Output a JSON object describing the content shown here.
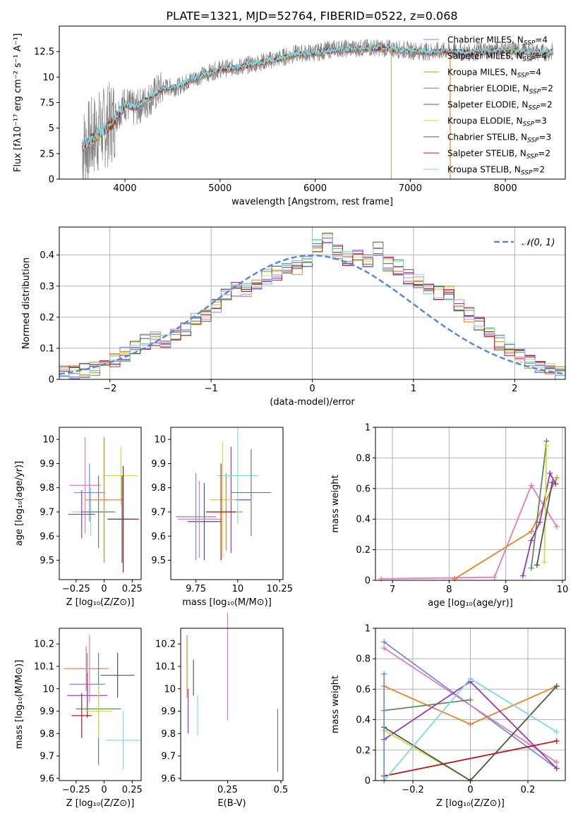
{
  "figure_title": "PLATE=1321, MJD=52764, FIBERID=0522, z=0.068",
  "chart_data": [
    {
      "id": "spectrum",
      "type": "line",
      "title": "PLATE=1321, MJD=52764, FIBERID=0522, z=0.068",
      "xlabel": "wavelength [Angstrom, rest frame]",
      "ylabel": "Flux [fλ10⁻¹⁷ erg cm⁻² s⁻¹ A⁻¹]",
      "xlim": [
        3310,
        8630
      ],
      "ylim": [
        0,
        15
      ],
      "xticks": [
        4000,
        5000,
        6000,
        7000,
        8000
      ],
      "yticks": [
        0.0,
        2.5,
        5.0,
        7.5,
        10.0,
        12.5
      ],
      "grid": false,
      "legend_position": "top-right",
      "data_wavelength": [
        3550,
        3700,
        3850,
        4000,
        4100,
        4250,
        4400,
        4550,
        4700,
        4850,
        5000,
        5200,
        5400,
        5600,
        5800,
        6000,
        6200,
        6400,
        6600,
        6800,
        7000,
        7200,
        7400,
        7600,
        7800,
        8000,
        8200,
        8400,
        8500
      ],
      "data_flux": [
        3.0,
        4.5,
        5.5,
        7.5,
        6.8,
        7.8,
        9.0,
        9.0,
        9.8,
        10.3,
        10.8,
        11.0,
        11.4,
        11.8,
        12.3,
        12.4,
        12.8,
        12.8,
        12.9,
        12.8,
        12.6,
        12.5,
        12.6,
        12.4,
        12.6,
        12.7,
        12.5,
        12.4,
        12.5
      ],
      "model_flux": [
        3.1,
        4.3,
        5.2,
        7.3,
        6.9,
        7.9,
        8.8,
        9.0,
        9.7,
        10.2,
        10.7,
        10.9,
        11.3,
        11.7,
        12.2,
        12.3,
        12.6,
        12.7,
        12.8,
        12.7,
        12.5,
        12.4,
        12.5,
        12.4,
        12.5,
        12.6,
        12.4,
        12.3,
        12.4
      ],
      "dip_lines": [
        6800,
        7420
      ]
    },
    {
      "id": "residuals",
      "type": "bar",
      "xlabel": "(data-model)/error",
      "ylabel": "Normed distribution",
      "xlim": [
        -2.5,
        2.5
      ],
      "ylim": [
        0,
        0.49
      ],
      "xticks": [
        -2,
        -1,
        0,
        1,
        2
      ],
      "yticks": [
        0.0,
        0.1,
        0.2,
        0.3,
        0.4
      ],
      "grid": true,
      "legend_position": "top-right",
      "legend_label": "𝒩(0, 1)",
      "bin_width": 0.1,
      "bin_start": -2.5,
      "histogram": [
        0.018,
        0.022,
        0.028,
        0.034,
        0.04,
        0.06,
        0.08,
        0.1,
        0.12,
        0.13,
        0.12,
        0.14,
        0.16,
        0.19,
        0.21,
        0.24,
        0.27,
        0.29,
        0.29,
        0.31,
        0.33,
        0.34,
        0.35,
        0.36,
        0.38,
        0.43,
        0.45,
        0.41,
        0.39,
        0.4,
        0.38,
        0.42,
        0.37,
        0.36,
        0.33,
        0.32,
        0.3,
        0.28,
        0.28,
        0.24,
        0.21,
        0.18,
        0.16,
        0.12,
        0.1,
        0.075,
        0.06,
        0.045,
        0.03,
        0.022
      ]
    },
    {
      "id": "z_vs_age",
      "type": "scatter",
      "xlabel": "Z [log₁₀(Z/Z⊙)]",
      "ylabel": "age  [log₁₀(age/yr)]",
      "xlim": [
        -0.4,
        0.33
      ],
      "ylim": [
        9.42,
        10.05
      ],
      "xticks": [
        -0.25,
        0.0,
        0.25
      ],
      "yticks": [
        9.5,
        9.6,
        9.7,
        9.8,
        9.9,
        10.0
      ],
      "points": [
        {
          "x": -0.12,
          "y": 9.7,
          "xerr": 0.16,
          "yerr": 0.1
        },
        {
          "x": -0.17,
          "y": 9.81,
          "xerr": 0.14,
          "yerr": 0.2
        },
        {
          "x": -0.05,
          "y": 9.7,
          "xerr": 0.15,
          "yerr": 0.15
        },
        {
          "x": 0.15,
          "y": 9.85,
          "xerr": 0.15,
          "yerr": 0.12
        },
        {
          "x": 0.17,
          "y": 9.67,
          "xerr": 0.14,
          "yerr": 0.22
        },
        {
          "x": -0.13,
          "y": 9.78,
          "xerr": 0.14,
          "yerr": 0.12
        },
        {
          "x": 0.0,
          "y": 9.75,
          "xerr": 0.17,
          "yerr": 0.26
        },
        {
          "x": -0.2,
          "y": 9.69,
          "xerr": 0.12,
          "yerr": 0.1
        },
        {
          "x": 0.16,
          "y": 9.67,
          "xerr": 0.12,
          "yerr": 0.18
        }
      ]
    },
    {
      "id": "mass_vs_age",
      "type": "scatter",
      "xlabel": "mass [log₁₀(M/M⊙)]",
      "ylabel": "",
      "xlim": [
        9.6,
        10.27
      ],
      "ylim": [
        9.42,
        10.05
      ],
      "xticks": [
        9.75,
        10.0,
        10.25
      ],
      "yticks": [
        9.5,
        9.6,
        9.7,
        9.8,
        9.9,
        10.0
      ],
      "points": [
        {
          "x": 9.93,
          "y": 9.7,
          "xerr": 0.1,
          "yerr": 0.16
        },
        {
          "x": 9.96,
          "y": 9.75,
          "xerr": 0.12,
          "yerr": 0.22
        },
        {
          "x": 9.8,
          "y": 9.66,
          "xerr": 0.1,
          "yerr": 0.16
        },
        {
          "x": 10.0,
          "y": 9.85,
          "xerr": 0.12,
          "yerr": 0.2
        },
        {
          "x": 9.77,
          "y": 9.67,
          "xerr": 0.13,
          "yerr": 0.16
        },
        {
          "x": 10.08,
          "y": 9.78,
          "xerr": 0.12,
          "yerr": 0.18
        },
        {
          "x": 9.91,
          "y": 9.75,
          "xerr": 0.08,
          "yerr": 0.24
        },
        {
          "x": 9.9,
          "y": 9.7,
          "xerr": 0.09,
          "yerr": 0.2
        },
        {
          "x": 9.75,
          "y": 9.68,
          "xerr": 0.12,
          "yerr": 0.18
        }
      ]
    },
    {
      "id": "weight_vs_age",
      "type": "line",
      "xlabel": "age  [log₁₀(age/yr)]",
      "ylabel": "mass weight",
      "xlim": [
        6.7,
        10.05
      ],
      "ylim": [
        0,
        1.0
      ],
      "xticks": [
        7,
        8,
        9,
        10
      ],
      "yticks": [
        0.0,
        0.2,
        0.4,
        0.6,
        0.8,
        1.0
      ],
      "grid": true,
      "series": [
        {
          "x": [
            6.8,
            8.8,
            9.45,
            9.9
          ],
          "y": [
            0.01,
            0.02,
            0.62,
            0.35
          ]
        },
        {
          "x": [
            8.1,
            9.45,
            9.9
          ],
          "y": [
            0.01,
            0.32,
            0.67
          ]
        },
        {
          "x": [
            9.45,
            9.72
          ],
          "y": [
            0.08,
            0.91
          ]
        },
        {
          "x": [
            9.3,
            9.45,
            9.6,
            9.78,
            9.88
          ],
          "y": [
            0.03,
            0.26,
            0.38,
            0.7,
            0.63
          ]
        },
        {
          "x": [
            9.68,
            9.72
          ],
          "y": [
            0.12,
            0.88
          ]
        },
        {
          "x": [
            9.55,
            9.82
          ],
          "y": [
            0.1,
            0.64
          ]
        }
      ]
    },
    {
      "id": "z_vs_mass",
      "type": "scatter",
      "xlabel": "Z [log₁₀(Z/Z⊙)]",
      "ylabel": "mass [log₁₀(M/M⊙)]",
      "xlim": [
        -0.4,
        0.33
      ],
      "ylim": [
        9.59,
        10.27
      ],
      "xticks": [
        -0.25,
        0.0,
        0.25
      ],
      "yticks": [
        9.6,
        9.7,
        9.8,
        9.9,
        10.0,
        10.1,
        10.2
      ],
      "points": [
        {
          "x": -0.15,
          "y": 10.02,
          "xerr": 0.16,
          "yerr": 0.14
        },
        {
          "x": -0.16,
          "y": 10.09,
          "xerr": 0.2,
          "yerr": 0.1
        },
        {
          "x": -0.15,
          "y": 9.97,
          "xerr": 0.18,
          "yerr": 0.1
        },
        {
          "x": 0.12,
          "y": 10.06,
          "xerr": 0.15,
          "yerr": 0.1
        },
        {
          "x": 0.17,
          "y": 9.77,
          "xerr": 0.15,
          "yerr": 0.13
        },
        {
          "x": -0.13,
          "y": 10.09,
          "xerr": 0.12,
          "yerr": 0.15
        },
        {
          "x": -0.05,
          "y": 9.91,
          "xerr": 0.2,
          "yerr": 0.25
        },
        {
          "x": -0.05,
          "y": 9.9,
          "xerr": 0.12,
          "yerr": 0.12
        },
        {
          "x": -0.2,
          "y": 9.88,
          "xerr": 0.09,
          "yerr": 0.1
        }
      ]
    },
    {
      "id": "ebv_vs_mass",
      "type": "scatter",
      "xlabel": "E(B-V)",
      "ylabel": "",
      "xlim": [
        0.03,
        0.51
      ],
      "ylim": [
        9.59,
        10.27
      ],
      "xticks": [
        0.25,
        0.5
      ],
      "yticks": [
        9.6,
        9.7,
        9.8,
        9.9,
        10.0,
        10.1,
        10.2
      ],
      "points": [
        {
          "x": 0.06,
          "y": 10.1,
          "yerr": 0.14
        },
        {
          "x": 0.065,
          "y": 9.9,
          "yerr": 0.1
        },
        {
          "x": 0.09,
          "y": 10.05,
          "yerr": 0.08
        },
        {
          "x": 0.11,
          "y": 9.88,
          "yerr": 0.09
        },
        {
          "x": 0.25,
          "y": 10.1,
          "yerr": 0.24
        },
        {
          "x": 0.485,
          "y": 9.77,
          "yerr": 0.14
        }
      ]
    },
    {
      "id": "weight_vs_z",
      "type": "line",
      "xlabel": "Z [log₁₀(Z/Z⊙)]",
      "ylabel": "mass weight",
      "xlim": [
        -0.33,
        0.33
      ],
      "ylim": [
        0,
        1.0
      ],
      "xticks": [
        -0.2,
        0.0,
        0.2
      ],
      "yticks": [
        0.0,
        0.2,
        0.4,
        0.6,
        0.8,
        1.0
      ],
      "grid": true,
      "series": [
        {
          "x": [
            -0.3,
            0.3
          ],
          "y": [
            0.91,
            0.08
          ]
        },
        {
          "x": [
            -0.3,
            0.3
          ],
          "y": [
            0.87,
            0.12
          ]
        },
        {
          "x": [
            -0.3,
            0.0,
            0.3
          ],
          "y": [
            0.62,
            0.37,
            0.62
          ]
        },
        {
          "x": [
            -0.3,
            0.0
          ],
          "y": [
            0.46,
            0.53
          ]
        },
        {
          "x": [
            -0.3,
            0.0,
            0.3
          ],
          "y": [
            0.27,
            0.65,
            0.08
          ]
        },
        {
          "x": [
            -0.3,
            0.0,
            0.3
          ],
          "y": [
            0.33,
            0.0,
            0.62
          ]
        },
        {
          "x": [
            -0.3,
            0.0,
            0.3
          ],
          "y": [
            0.35,
            0.0,
            0.62
          ]
        },
        {
          "x": [
            -0.3,
            0.3
          ],
          "y": [
            0.03,
            0.26
          ]
        },
        {
          "x": [
            -0.3,
            0.0,
            0.3
          ],
          "y": [
            0.0,
            0.67,
            0.32
          ]
        },
        {
          "x": [
            -0.3,
            -0.3
          ],
          "y": [
            0.0,
            0.7
          ]
        }
      ]
    }
  ],
  "legend": [
    {
      "label": "Chabrier MILES, N",
      "sub": "SSP",
      "suffix": "=4",
      "color": "#6f8fd6"
    },
    {
      "label": "Salpeter MILES, N",
      "sub": "SSP",
      "suffix": "=4",
      "color": "#e07fb5"
    },
    {
      "label": "Kroupa MILES, N",
      "sub": "SSP",
      "suffix": "=4",
      "color": "#e5842c"
    },
    {
      "label": "Chabrier ELODIE, N",
      "sub": "SSP",
      "suffix": "=2",
      "color": "#5e8c5e"
    },
    {
      "label": "Salpeter ELODIE, N",
      "sub": "SSP",
      "suffix": "=2",
      "color": "#9a36b8"
    },
    {
      "label": "Kroupa ELODIE, N",
      "sub": "SSP",
      "suffix": "=3",
      "color": "#c8e04a"
    },
    {
      "label": "Chabrier STELIB, N",
      "sub": "SSP",
      "suffix": "=3",
      "color": "#555555"
    },
    {
      "label": "Salpeter STELIB, N",
      "sub": "SSP",
      "suffix": "=2",
      "color": "#b01c1c"
    },
    {
      "label": "Kroupa STELIB, N",
      "sub": "SSP",
      "suffix": "=2",
      "color": "#7fd8e0"
    }
  ],
  "colors": [
    "#6f8fd6",
    "#e07fb5",
    "#e5842c",
    "#5e8c5e",
    "#9a36b8",
    "#c8e04a",
    "#555555",
    "#b01c1c",
    "#7fd8e0"
  ]
}
